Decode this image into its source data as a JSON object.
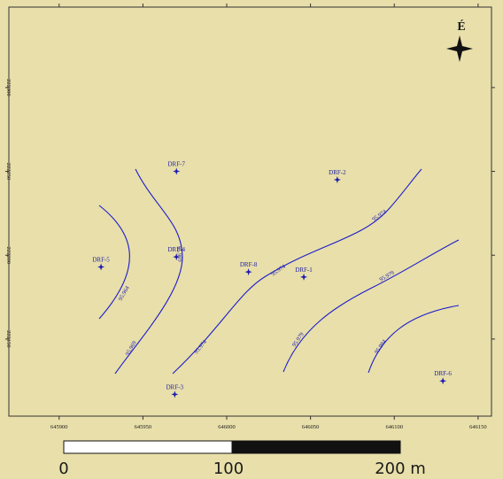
{
  "map": {
    "north": "É",
    "xlim": [
      645870,
      646158
    ],
    "ylim": [
      222104,
      222348
    ],
    "xticks": [
      645900,
      645950,
      646000,
      646050,
      646100,
      646150
    ],
    "yticks": [
      222150,
      222200,
      222250,
      222300
    ],
    "wells": [
      {
        "name": "DRF-7",
        "x": 645970,
        "y": 222250
      },
      {
        "name": "DRF-2",
        "x": 646066,
        "y": 222245
      },
      {
        "name": "DRF-5",
        "x": 645925,
        "y": 222193
      },
      {
        "name": "DRF-4",
        "x": 645970,
        "y": 222199
      },
      {
        "name": "DRF-8",
        "x": 646013,
        "y": 222190
      },
      {
        "name": "DRF-1",
        "x": 646046,
        "y": 222187
      },
      {
        "name": "DRF-3",
        "x": 645969,
        "y": 222117
      },
      {
        "name": "DRF-6",
        "x": 646129,
        "y": 222125
      }
    ],
    "contour_labels": [
      "95.964",
      "95.969",
      "95.969",
      "95.974",
      "95.974",
      "95.974",
      "95.979",
      "95.979",
      "95.984"
    ],
    "scale_labels": [
      "0",
      "100",
      "200 m"
    ]
  }
}
